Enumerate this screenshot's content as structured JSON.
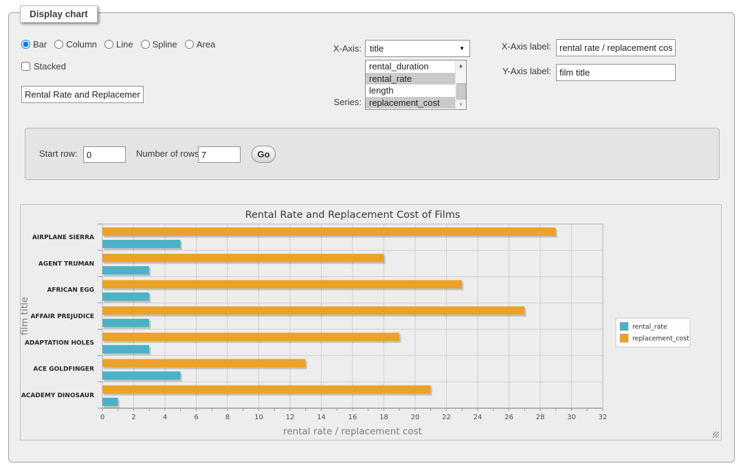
{
  "window": {
    "legend": "Display chart"
  },
  "chart_types": {
    "options": [
      {
        "label": "Bar",
        "selected": true
      },
      {
        "label": "Column",
        "selected": false
      },
      {
        "label": "Line",
        "selected": false
      },
      {
        "label": "Spline",
        "selected": false
      },
      {
        "label": "Area",
        "selected": false
      }
    ]
  },
  "stacked": {
    "label": "Stacked",
    "checked": false
  },
  "chart_title_input": {
    "value": "Rental Rate and Replacement Cost of Films"
  },
  "x_axis": {
    "label": "X-Axis:",
    "selected": "title"
  },
  "series_select": {
    "label": "Series:",
    "options": [
      "rental_duration",
      "rental_rate",
      "length",
      "replacement_cost"
    ],
    "selected": [
      "rental_rate",
      "replacement_cost"
    ]
  },
  "x_axis_label_field": {
    "label": "X-Axis label:",
    "value": "rental rate / replacement cost"
  },
  "y_axis_label_field": {
    "label": "Y-Axis label:",
    "value": "film title"
  },
  "rows_form": {
    "start_row_label": "Start row:",
    "start_row_value": "0",
    "rows_label": "Number of rows:",
    "rows_value": "7",
    "go_label": "Go"
  },
  "chart_data": {
    "type": "bar",
    "orientation": "horizontal",
    "title": "Rental Rate and Replacement Cost of Films",
    "categories": [
      "AIRPLANE SIERRA",
      "AGENT TRUMAN",
      "AFRICAN EGG",
      "AFFAIR PREJUDICE",
      "ADAPTATION HOLES",
      "ACE GOLDFINGER",
      "ACADEMY DINOSAUR"
    ],
    "series": [
      {
        "name": "rental_rate",
        "color": "#4bb2c5",
        "values": [
          4.99,
          2.99,
          2.99,
          2.99,
          2.99,
          4.99,
          0.99
        ]
      },
      {
        "name": "replacement_cost",
        "color": "#EAA228",
        "values": [
          28.99,
          17.99,
          22.99,
          26.99,
          18.99,
          12.99,
          20.99
        ]
      }
    ],
    "xlabel": "rental rate / replacement cost",
    "ylabel": "film title",
    "xlim": [
      0,
      32
    ],
    "xtick_step": 2,
    "grid": true,
    "legend_position": "right-middle",
    "colors": {
      "grid_line": "#cfcfcf",
      "axis_text": "#4a4c50",
      "axis_label": "#7a7c80",
      "title_text": "#343940",
      "legend_bg": "#fdfdfd",
      "legend_border": "#c9c9c9"
    }
  }
}
